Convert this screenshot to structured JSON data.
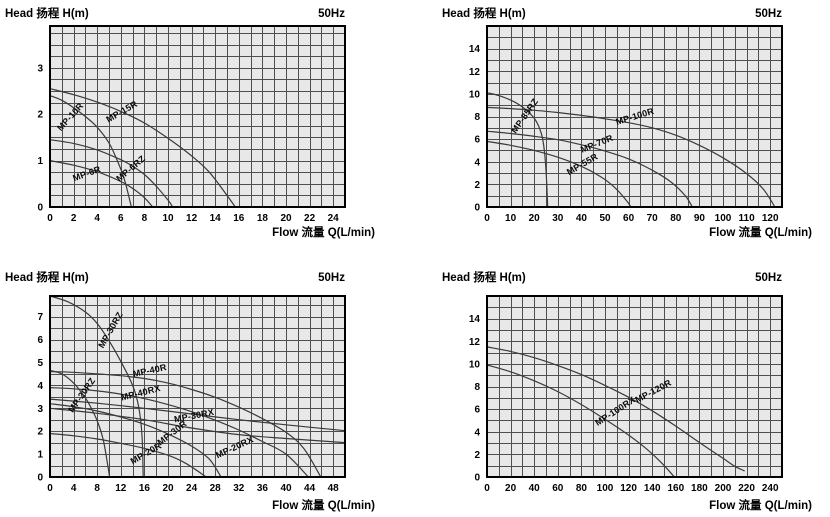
{
  "chart_data": [
    {
      "id": "top-left",
      "type": "line",
      "title": "Head 扬程 H(m)",
      "frequency": "50Hz",
      "xlabel": "Flow 流量 Q(L/min)",
      "ylabel": "Head 扬程 H(m)",
      "xlim": [
        0,
        25
      ],
      "ylim": [
        0,
        3.9
      ],
      "x_minor": 1,
      "y_minor": 0.25,
      "x_ticks": [
        0,
        2,
        4,
        6,
        8,
        10,
        12,
        14,
        16,
        18,
        20,
        22,
        24
      ],
      "y_ticks": [
        0,
        1,
        2,
        3
      ],
      "grid": true,
      "legend_position": "inline-labels",
      "series": [
        {
          "name": "MP-15R",
          "points": [
            [
              0,
              2.55
            ],
            [
              2,
              2.42
            ],
            [
              4,
              2.26
            ],
            [
              6,
              2.06
            ],
            [
              8,
              1.81
            ],
            [
              10,
              1.48
            ],
            [
              12,
              1.1
            ],
            [
              13.5,
              0.75
            ],
            [
              15,
              0.25
            ],
            [
              15.7,
              0
            ]
          ],
          "label_at": [
            6.2,
            2.0
          ],
          "label_angle": -30
        },
        {
          "name": "MP-10R",
          "points": [
            [
              0,
              2.4
            ],
            [
              1,
              2.3
            ],
            [
              2,
              2.14
            ],
            [
              3,
              1.95
            ],
            [
              4,
              1.72
            ],
            [
              5,
              1.38
            ],
            [
              5.7,
              1.0
            ],
            [
              6.3,
              0.6
            ],
            [
              6.9,
              0
            ]
          ],
          "label_at": [
            1.9,
            1.9
          ],
          "label_angle": -48
        },
        {
          "name": "MP-6RZ",
          "points": [
            [
              0,
              1.45
            ],
            [
              2,
              1.37
            ],
            [
              4,
              1.23
            ],
            [
              6,
              1.02
            ],
            [
              7,
              0.88
            ],
            [
              8,
              0.7
            ],
            [
              9,
              0.45
            ],
            [
              10,
              0.15
            ],
            [
              10.4,
              0
            ]
          ],
          "label_at": [
            7.0,
            0.78
          ],
          "label_angle": -40
        },
        {
          "name": "MP-6R",
          "points": [
            [
              0,
              1.0
            ],
            [
              2,
              0.9
            ],
            [
              4,
              0.76
            ],
            [
              6,
              0.55
            ],
            [
              7,
              0.4
            ],
            [
              8,
              0.2
            ],
            [
              8.7,
              0
            ]
          ],
          "label_at": [
            3.2,
            0.66
          ],
          "label_angle": -20
        }
      ]
    },
    {
      "id": "top-right",
      "type": "line",
      "title": "Head 扬程 H(m)",
      "frequency": "50Hz",
      "xlabel": "Flow 流量 Q(L/min)",
      "ylabel": "Head 扬程 H(m)",
      "xlim": [
        0,
        125
      ],
      "ylim": [
        0,
        16
      ],
      "x_minor": 5,
      "y_minor": 1,
      "x_ticks": [
        0,
        10,
        20,
        30,
        40,
        50,
        60,
        70,
        80,
        90,
        100,
        110,
        120
      ],
      "y_ticks": [
        0,
        2,
        4,
        6,
        8,
        10,
        12,
        14
      ],
      "grid": true,
      "legend_position": "inline-labels",
      "series": [
        {
          "name": "MP-85RZ",
          "points": [
            [
              0,
              10.1
            ],
            [
              5,
              9.85
            ],
            [
              10,
              9.45
            ],
            [
              14,
              9.0
            ],
            [
              17,
              8.5
            ],
            [
              20,
              7.85
            ],
            [
              22,
              7.1
            ],
            [
              23.5,
              6.1
            ],
            [
              24.5,
              4.6
            ],
            [
              25.2,
              2.5
            ],
            [
              25.7,
              0
            ]
          ],
          "label_at": [
            17,
            7.9
          ],
          "label_angle": -55
        },
        {
          "name": "MP-100R",
          "points": [
            [
              0,
              8.8
            ],
            [
              10,
              8.7
            ],
            [
              20,
              8.55
            ],
            [
              30,
              8.35
            ],
            [
              40,
              8.1
            ],
            [
              50,
              7.8
            ],
            [
              60,
              7.45
            ],
            [
              70,
              7.0
            ],
            [
              80,
              6.35
            ],
            [
              90,
              5.45
            ],
            [
              100,
              4.35
            ],
            [
              110,
              2.95
            ],
            [
              117,
              1.6
            ],
            [
              122,
              0
            ]
          ],
          "label_at": [
            63,
            7.75
          ],
          "label_angle": -17
        },
        {
          "name": "MP-70R",
          "points": [
            [
              0,
              6.7
            ],
            [
              10,
              6.5
            ],
            [
              20,
              6.25
            ],
            [
              30,
              5.95
            ],
            [
              40,
              5.5
            ],
            [
              50,
              4.95
            ],
            [
              60,
              4.25
            ],
            [
              70,
              3.25
            ],
            [
              78,
              2.2
            ],
            [
              84,
              1.0
            ],
            [
              87,
              0
            ]
          ],
          "label_at": [
            47,
            5.35
          ],
          "label_angle": -22
        },
        {
          "name": "MP-55R",
          "points": [
            [
              0,
              5.8
            ],
            [
              10,
              5.45
            ],
            [
              20,
              5.0
            ],
            [
              30,
              4.4
            ],
            [
              40,
              3.6
            ],
            [
              48,
              2.7
            ],
            [
              54,
              1.75
            ],
            [
              59,
              0.6
            ],
            [
              61,
              0
            ]
          ],
          "label_at": [
            41,
            3.55
          ],
          "label_angle": -30
        }
      ]
    },
    {
      "id": "bottom-left",
      "type": "line",
      "title": "Head 扬程 H(m)",
      "frequency": "50Hz",
      "xlabel": "Flow 流量 Q(L/min)",
      "ylabel": "Head 扬程 H(m)",
      "xlim": [
        0,
        50
      ],
      "ylim": [
        0,
        7.9
      ],
      "x_minor": 2,
      "y_minor": 0.5,
      "x_ticks": [
        0,
        4,
        8,
        12,
        16,
        20,
        24,
        28,
        32,
        36,
        40,
        44,
        48
      ],
      "y_ticks": [
        0,
        1,
        2,
        3,
        4,
        5,
        6,
        7
      ],
      "grid": true,
      "legend_position": "inline-labels",
      "series": [
        {
          "name": "MP-30RZ",
          "points": [
            [
              0,
              7.9
            ],
            [
              3,
              7.65
            ],
            [
              6,
              7.2
            ],
            [
              8,
              6.7
            ],
            [
              10,
              5.95
            ],
            [
              12,
              5.05
            ],
            [
              14,
              4.0
            ],
            [
              15,
              3.1
            ],
            [
              15.6,
              1.8
            ],
            [
              15.8,
              0
            ]
          ],
          "label_at": [
            10.7,
            6.35
          ],
          "label_angle": -60
        },
        {
          "name": "MP-20RZ",
          "points": [
            [
              0,
              4.65
            ],
            [
              2,
              4.5
            ],
            [
              4,
              4.1
            ],
            [
              6,
              3.45
            ],
            [
              7,
              3.0
            ],
            [
              8,
              2.45
            ],
            [
              9,
              1.65
            ],
            [
              9.8,
              0.5
            ],
            [
              10.1,
              0
            ]
          ],
          "label_at": [
            5.8,
            3.5
          ],
          "label_angle": -55
        },
        {
          "name": "MP-40R",
          "points": [
            [
              0,
              4.6
            ],
            [
              4,
              4.57
            ],
            [
              8,
              4.5
            ],
            [
              12,
              4.42
            ],
            [
              16,
              4.3
            ],
            [
              20,
              4.1
            ],
            [
              24,
              3.82
            ],
            [
              28,
              3.48
            ],
            [
              32,
              3.05
            ],
            [
              36,
              2.55
            ],
            [
              40,
              1.95
            ],
            [
              43,
              1.25
            ],
            [
              45.9,
              0
            ]
          ],
          "label_at": [
            17,
            4.52
          ],
          "label_angle": -12
        },
        {
          "name": "MP-40RX",
          "points": [
            [
              0,
              3.9
            ],
            [
              4,
              3.85
            ],
            [
              8,
              3.76
            ],
            [
              12,
              3.62
            ],
            [
              16,
              3.42
            ],
            [
              20,
              3.16
            ],
            [
              24,
              2.85
            ],
            [
              28,
              2.48
            ],
            [
              32,
              2.05
            ],
            [
              36,
              1.55
            ],
            [
              40,
              1.0
            ],
            [
              43.8,
              0
            ]
          ],
          "label_at": [
            15.5,
            3.55
          ],
          "label_angle": -14
        },
        {
          "name": "MP-30RX",
          "points": [
            [
              0,
              3.4
            ],
            [
              8,
              3.22
            ],
            [
              16,
              3.0
            ],
            [
              24,
              2.75
            ],
            [
              32,
              2.5
            ],
            [
              40,
              2.28
            ],
            [
              50,
              2.02
            ]
          ],
          "label_at": [
            24.5,
            2.55
          ],
          "label_angle": -11
        },
        {
          "name": "MP-30R",
          "points": [
            [
              0,
              3.2
            ],
            [
              4,
              3.07
            ],
            [
              8,
              2.88
            ],
            [
              12,
              2.62
            ],
            [
              16,
              2.3
            ],
            [
              20,
              1.88
            ],
            [
              24,
              1.35
            ],
            [
              27,
              0.78
            ],
            [
              29,
              0
            ]
          ],
          "label_at": [
            21,
            1.82
          ],
          "label_angle": -38
        },
        {
          "name": "MP-20RX",
          "points": [
            [
              0,
              3.0
            ],
            [
              8,
              2.78
            ],
            [
              16,
              2.5
            ],
            [
              24,
              2.14
            ],
            [
              32,
              1.85
            ],
            [
              40,
              1.68
            ],
            [
              50,
              1.5
            ]
          ],
          "label_at": [
            31.5,
            1.18
          ],
          "label_angle": -25
        },
        {
          "name": "MP-20R",
          "points": [
            [
              0,
              1.9
            ],
            [
              4,
              1.8
            ],
            [
              8,
              1.66
            ],
            [
              12,
              1.47
            ],
            [
              16,
              1.25
            ],
            [
              20,
              0.95
            ],
            [
              23,
              0.6
            ],
            [
              26.5,
              0
            ]
          ],
          "label_at": [
            16.5,
            0.92
          ],
          "label_angle": -30
        }
      ]
    },
    {
      "id": "bottom-right",
      "type": "line",
      "title": "Head 扬程 H(m)",
      "frequency": "50Hz",
      "xlabel": "Flow 流量 Q(L/min)",
      "ylabel": "Head 扬程 H(m)",
      "xlim": [
        0,
        250
      ],
      "ylim": [
        0,
        16
      ],
      "x_minor": 10,
      "y_minor": 1,
      "x_ticks": [
        0,
        20,
        40,
        60,
        80,
        100,
        120,
        140,
        160,
        180,
        200,
        220,
        240
      ],
      "y_ticks": [
        0,
        2,
        4,
        6,
        8,
        10,
        12,
        14
      ],
      "grid": true,
      "legend_position": "inline-labels",
      "series": [
        {
          "name": "MP-120R",
          "points": [
            [
              0,
              11.5
            ],
            [
              20,
              11.1
            ],
            [
              40,
              10.55
            ],
            [
              60,
              9.85
            ],
            [
              80,
              9.05
            ],
            [
              100,
              8.1
            ],
            [
              120,
              7.05
            ],
            [
              140,
              5.85
            ],
            [
              160,
              4.5
            ],
            [
              180,
              3.05
            ],
            [
              200,
              1.65
            ],
            [
              210,
              0.95
            ],
            [
              218,
              0.55
            ]
          ],
          "label_at": [
            142,
            7.35
          ],
          "label_angle": -28
        },
        {
          "name": "MP-100RX",
          "points": [
            [
              0,
              9.9
            ],
            [
              20,
              9.3
            ],
            [
              40,
              8.5
            ],
            [
              60,
              7.55
            ],
            [
              80,
              6.4
            ],
            [
              100,
              5.1
            ],
            [
              120,
              3.7
            ],
            [
              135,
              2.5
            ],
            [
              148,
              1.25
            ],
            [
              158,
              0.1
            ],
            [
              159,
              0
            ]
          ],
          "label_at": [
            110,
            5.6
          ],
          "label_angle": -33
        }
      ]
    }
  ],
  "style": {
    "plot_bg": "#e8e8e8",
    "grid_color": "#4e4e4e",
    "border_color": "#000000",
    "curve_color": "#3a3a3a",
    "text_color": "#000000"
  }
}
